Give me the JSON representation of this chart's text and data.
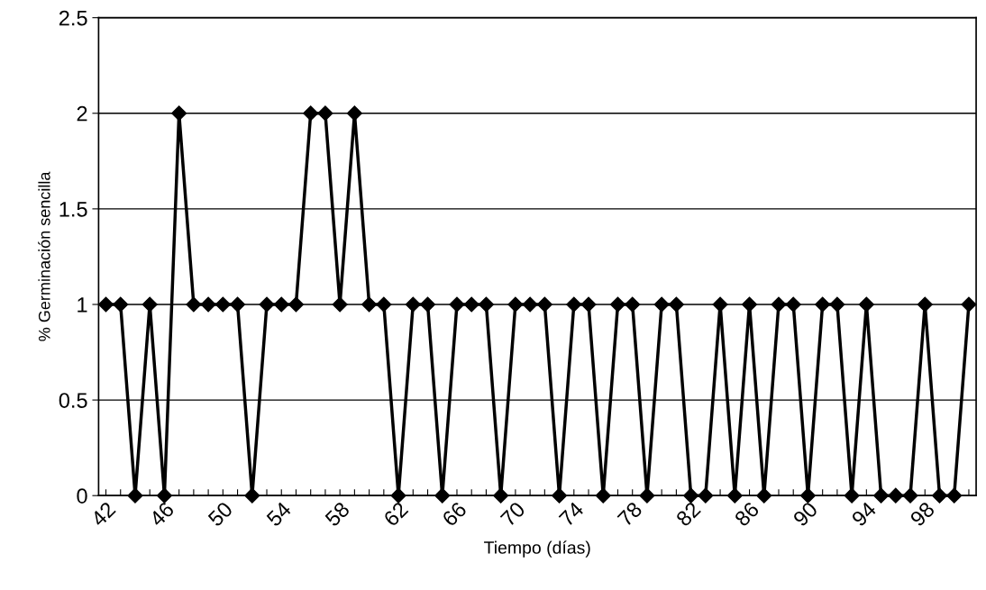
{
  "chart_data": {
    "type": "line",
    "xlabel": "Tiempo (días)",
    "ylabel": "% Germinación sencilla",
    "categories": [
      "42",
      null,
      null,
      null,
      "46",
      null,
      null,
      null,
      "50",
      null,
      null,
      null,
      "54",
      null,
      null,
      null,
      "58",
      null,
      null,
      null,
      "62",
      null,
      null,
      null,
      "66",
      null,
      null,
      null,
      "70",
      null,
      null,
      null,
      "74",
      null,
      null,
      null,
      "78",
      null,
      null,
      null,
      "82",
      null,
      null,
      null,
      "86",
      null,
      null,
      null,
      "90",
      null,
      null,
      null,
      "94",
      null,
      null,
      null,
      "98",
      null,
      null,
      null
    ],
    "series": [
      {
        "color": "#000000",
        "values": [
          1,
          1,
          0,
          1,
          0,
          2,
          1,
          1,
          1,
          1,
          0,
          1,
          1,
          1,
          2,
          2,
          1,
          2,
          1,
          1,
          0,
          1,
          1,
          0,
          1,
          1,
          1,
          0,
          1,
          1,
          1,
          0,
          1,
          1,
          0,
          1,
          1,
          0,
          1,
          1,
          0,
          0,
          1,
          0,
          1,
          0,
          1,
          1,
          0,
          1,
          1,
          0,
          1,
          0,
          0,
          0,
          1,
          0,
          0,
          1
        ]
      }
    ],
    "ylim": [
      0,
      2.5
    ],
    "yticks": [
      0,
      0.5,
      1,
      1.5,
      2,
      2.5
    ],
    "grid": "y",
    "marker": "diamond",
    "line_style": "solid"
  }
}
